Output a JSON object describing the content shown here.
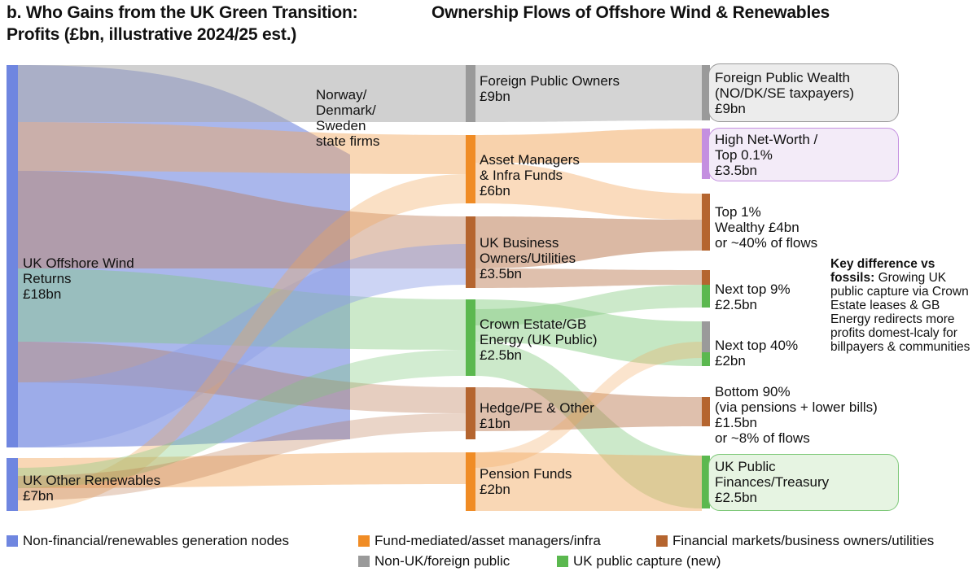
{
  "title": {
    "line1": "b. Who Gains from the UK Green Transition:",
    "line1_right": "Ownership Flows of Offshore Wind & Renewables",
    "line2": "Profits (£bn, illustrative 2024/25 est.)"
  },
  "colors": {
    "blue": "#8d9fe6",
    "orange": "#f2a65a",
    "brown": "#b8734a",
    "gray": "#a9a9a9",
    "green": "#7fc97a",
    "purple": "#c9a3df",
    "node_blue": "#6f86e0",
    "node_orange": "#f08c25",
    "node_brown": "#b5652f",
    "node_gray": "#9a9a9a",
    "node_green": "#5bb84f",
    "node_purple": "#c48fe0"
  },
  "sources": {
    "offshore": {
      "line1": "UK Offshore Wind",
      "line2": "Returns",
      "value": "£18bn"
    },
    "other": {
      "line1": "UK Other Renewables",
      "value": "£7bn"
    }
  },
  "flow_label": {
    "line1": "Norway/",
    "line2": "Denmark/",
    "line3": "Sweden",
    "line4": "state firms"
  },
  "middle": {
    "foreign": {
      "line1": "Foreign Public Owners",
      "value": "£9bn"
    },
    "asset": {
      "line1": "Asset Managers",
      "line2": "& Infra Funds",
      "value": "£6bn"
    },
    "business": {
      "line1": "UK Business",
      "line2": "Owners/Utilities",
      "value": "£3.5bn"
    },
    "crown": {
      "line1": "Crown Estate/GB",
      "line2": "Energy (UK Public)",
      "value": "£2.5bn"
    },
    "hedge": {
      "line1": "Hedge/PE & Other",
      "value": "£1bn"
    },
    "pension": {
      "line1": "Pension Funds",
      "value": "£2bn"
    }
  },
  "right": {
    "foreign_wealth": {
      "line1": "Foreign Public Wealth",
      "line2": "(NO/DK/SE taxpayers)",
      "value": "£9bn"
    },
    "hnw": {
      "line1": "High Net-Worth /",
      "line2": "Top 0.1%",
      "value": "£3.5bn"
    },
    "top1": {
      "line1": "Top 1%",
      "line2": "Wealthy £4bn",
      "line3": "or ~40% of flows"
    },
    "next9": {
      "line1": "Next top 9%",
      "value": "£2.5bn"
    },
    "next40": {
      "line1": "Next top 40%",
      "value": "£2bn"
    },
    "bottom90": {
      "line1": "Bottom 90%",
      "line2": "(via pensions + lower bills)",
      "value": "£1.5bn",
      "line4": "or ~8% of flows"
    },
    "public": {
      "line1": "UK Public",
      "line2": "Finances/Treasury",
      "value": "£2.5bn"
    }
  },
  "note": {
    "bold": "Key difference vs fossils:",
    "text": " Growing UK public capture via Crown Estate leases & GB Energy redirects more profits domest-lcaly for billpayers & communities"
  },
  "legend": {
    "item1": "Non-financial/renewables generation nodes",
    "item2": "Fund-mediated/asset managers/infra",
    "item3": "Financial markets/business owners/utilities",
    "item4": "Non-UK/foreign public",
    "item5": "UK public capture (new)"
  }
}
